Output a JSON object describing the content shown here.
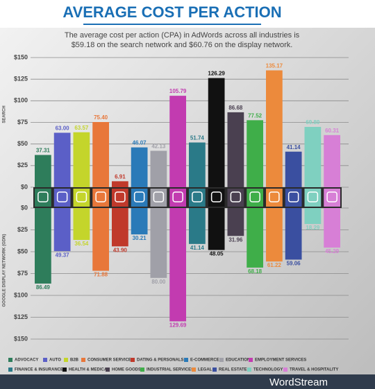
{
  "chart_data": {
    "type": "bar",
    "title": "AVERAGE COST PER ACTION",
    "subtitle": [
      "The average cost per action (CPA) in AdWords across all industries is",
      "$59.18 on the search network and $60.76 on the display network."
    ],
    "ylabel": "SEARCH",
    "y2label": "GOOGLE DISPLAY NETWORK (GDN)",
    "categories": [
      "ADVOCACY",
      "AUTO",
      "B2B",
      "CONSUMER SERVICES",
      "DATING & PERSONALS",
      "E-COMMERCE",
      "EDUCATION",
      "EMPLOYMENT SERVICES",
      "FINANCE & INSURANCE",
      "HEALTH & MEDICAL",
      "HOME GOODS",
      "INDUSTRIAL SERVICES",
      "LEGAL",
      "REAL ESTATE",
      "TECHNOLOGY",
      "TRAVEL & HOSPITALITY"
    ],
    "colors": [
      "#2e7d5b",
      "#5b5fc7",
      "#c4d52b",
      "#e8773a",
      "#c0392b",
      "#2a7ab8",
      "#a0a0a8",
      "#c23bb0",
      "#2a7a88",
      "#111111",
      "#4a4050",
      "#3fae49",
      "#ec8a3c",
      "#3a4fa0",
      "#7fd0c0",
      "#d77fd6"
    ],
    "series": [
      {
        "values": [
          37.31,
          63.0,
          63.57,
          75.4,
          6.91,
          46.07,
          42.13,
          105.79,
          51.74,
          126.29,
          86.68,
          77.52,
          135.17,
          41.14,
          69.8,
          60.31
        ],
        "value_labels": [
          "37.31",
          "63.00",
          "63.57",
          "75.40",
          "6.91",
          "46.07",
          "42.13",
          "105.79",
          "51.74",
          "126.29",
          "86.68",
          "77.52",
          "135.17",
          "41.14",
          "69.80",
          "60.31"
        ]
      },
      {
        "axis": "y2",
        "values": [
          86.49,
          49.37,
          36.54,
          71.88,
          43.9,
          30.21,
          80.0,
          129.69,
          41.14,
          48.05,
          31.96,
          68.18,
          61.22,
          59.06,
          18.29,
          45.29
        ],
        "value_labels": [
          "86.49",
          "49.37",
          "36.54",
          "71.88",
          "43.90",
          "30.21",
          "80.00",
          "129.69",
          "41.14",
          "48.05",
          "31.96",
          "68.18",
          "61.22",
          "59.06",
          "18.29",
          "45.29"
        ]
      }
    ],
    "ylim": [
      0,
      150
    ],
    "yticks": [
      {
        "value": 0,
        "label": "$0"
      },
      {
        "value": 25,
        "label": "$25"
      },
      {
        "value": 50,
        "label": "$50"
      },
      {
        "value": 75,
        "label": "$75"
      },
      {
        "value": 100,
        "label": "$100"
      },
      {
        "value": 125,
        "label": "$125"
      },
      {
        "value": 150,
        "label": "$150"
      }
    ],
    "y2lim": [
      0,
      150
    ],
    "y2ticks": [
      {
        "value": 0,
        "label": "$0"
      },
      {
        "value": 25,
        "label": "$25"
      },
      {
        "value": 50,
        "label": "$50"
      },
      {
        "value": 75,
        "label": "$75"
      },
      {
        "value": 100,
        "label": "$100"
      },
      {
        "value": 125,
        "label": "$125"
      },
      {
        "value": 150,
        "label": "$150"
      }
    ],
    "grid": true,
    "brand": "WordStream"
  }
}
